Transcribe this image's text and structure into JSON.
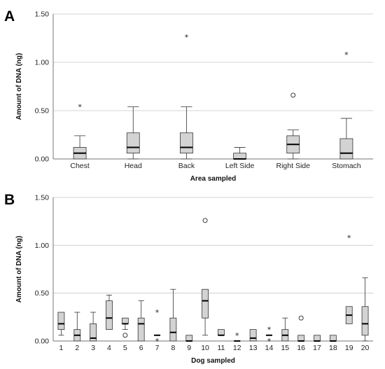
{
  "chart_data": [
    {
      "panel": "A",
      "type": "boxplot",
      "xlabel": "Area sampled",
      "ylabel": "Amount of DNA (ng)",
      "ylim": [
        0,
        1.5
      ],
      "yticks": [
        "0.00",
        "0.50",
        "1.00",
        "1.50"
      ],
      "grid": true,
      "categories": [
        "Chest",
        "Head",
        "Back",
        "Left Side",
        "Right Side",
        "Stomach"
      ],
      "boxes": [
        {
          "min": 0.0,
          "q1": 0.0,
          "median": 0.06,
          "q3": 0.12,
          "max": 0.24,
          "outliers": [
            {
              "value": 0.54,
              "kind": "extreme"
            }
          ]
        },
        {
          "min": 0.0,
          "q1": 0.06,
          "median": 0.12,
          "q3": 0.27,
          "max": 0.54,
          "outliers": []
        },
        {
          "min": 0.0,
          "q1": 0.06,
          "median": 0.12,
          "q3": 0.27,
          "max": 0.54,
          "outliers": [
            {
              "value": 1.26,
              "kind": "extreme"
            }
          ]
        },
        {
          "min": 0.0,
          "q1": 0.0,
          "median": 0.0,
          "q3": 0.06,
          "max": 0.12,
          "outliers": []
        },
        {
          "min": 0.0,
          "q1": 0.06,
          "median": 0.15,
          "q3": 0.24,
          "max": 0.3,
          "outliers": [
            {
              "value": 0.66,
              "kind": "outlier"
            }
          ]
        },
        {
          "min": 0.0,
          "q1": 0.0,
          "median": 0.06,
          "q3": 0.21,
          "max": 0.42,
          "outliers": [
            {
              "value": 1.08,
              "kind": "extreme"
            }
          ]
        }
      ]
    },
    {
      "panel": "B",
      "type": "boxplot",
      "xlabel": "Dog sampled",
      "ylabel": "Amount of DNA (ng)",
      "ylim": [
        0,
        1.5
      ],
      "yticks": [
        "0.00",
        "0.50",
        "1.00",
        "1.50"
      ],
      "grid": true,
      "categories": [
        "1",
        "2",
        "3",
        "4",
        "5",
        "6",
        "7",
        "8",
        "9",
        "10",
        "11",
        "12",
        "13",
        "14",
        "15",
        "16",
        "17",
        "18",
        "19",
        "20"
      ],
      "boxes": [
        {
          "min": 0.06,
          "q1": 0.12,
          "median": 0.18,
          "q3": 0.3,
          "max": 0.3,
          "outliers": []
        },
        {
          "min": 0.0,
          "q1": 0.0,
          "median": 0.06,
          "q3": 0.12,
          "max": 0.3,
          "outliers": []
        },
        {
          "min": 0.0,
          "q1": 0.0,
          "median": 0.03,
          "q3": 0.18,
          "max": 0.3,
          "outliers": []
        },
        {
          "min": 0.12,
          "q1": 0.12,
          "median": 0.24,
          "q3": 0.42,
          "max": 0.48,
          "outliers": []
        },
        {
          "min": 0.12,
          "q1": 0.18,
          "median": 0.18,
          "q3": 0.24,
          "max": 0.24,
          "outliers": [
            {
              "value": 0.06,
              "kind": "outlier"
            }
          ]
        },
        {
          "min": 0.0,
          "q1": 0.0,
          "median": 0.18,
          "q3": 0.24,
          "max": 0.42,
          "outliers": []
        },
        {
          "min": 0.06,
          "q1": 0.06,
          "median": 0.06,
          "q3": 0.06,
          "max": 0.06,
          "outliers": [
            {
              "value": 0.0,
              "kind": "extreme"
            },
            {
              "value": 0.3,
              "kind": "extreme"
            }
          ]
        },
        {
          "min": 0.0,
          "q1": 0.0,
          "median": 0.09,
          "q3": 0.24,
          "max": 0.54,
          "outliers": []
        },
        {
          "min": 0.0,
          "q1": 0.0,
          "median": 0.0,
          "q3": 0.06,
          "max": 0.06,
          "outliers": []
        },
        {
          "min": 0.06,
          "q1": 0.24,
          "median": 0.42,
          "q3": 0.54,
          "max": 0.54,
          "outliers": [
            {
              "value": 1.26,
              "kind": "outlier"
            }
          ]
        },
        {
          "min": 0.06,
          "q1": 0.06,
          "median": 0.06,
          "q3": 0.12,
          "max": 0.12,
          "outliers": []
        },
        {
          "min": 0.0,
          "q1": 0.0,
          "median": 0.0,
          "q3": 0.0,
          "max": 0.0,
          "outliers": [
            {
              "value": 0.06,
              "kind": "extreme"
            }
          ]
        },
        {
          "min": 0.0,
          "q1": 0.0,
          "median": 0.03,
          "q3": 0.12,
          "max": 0.12,
          "outliers": []
        },
        {
          "min": 0.06,
          "q1": 0.06,
          "median": 0.06,
          "q3": 0.06,
          "max": 0.06,
          "outliers": [
            {
              "value": 0.0,
              "kind": "extreme"
            },
            {
              "value": 0.12,
              "kind": "extreme"
            }
          ]
        },
        {
          "min": 0.0,
          "q1": 0.0,
          "median": 0.06,
          "q3": 0.12,
          "max": 0.24,
          "outliers": []
        },
        {
          "min": 0.0,
          "q1": 0.0,
          "median": 0.0,
          "q3": 0.06,
          "max": 0.06,
          "outliers": [
            {
              "value": 0.24,
              "kind": "outlier"
            }
          ]
        },
        {
          "min": 0.0,
          "q1": 0.0,
          "median": 0.0,
          "q3": 0.06,
          "max": 0.06,
          "outliers": []
        },
        {
          "min": 0.0,
          "q1": 0.0,
          "median": 0.0,
          "q3": 0.06,
          "max": 0.06,
          "outliers": []
        },
        {
          "min": 0.18,
          "q1": 0.18,
          "median": 0.27,
          "q3": 0.36,
          "max": 0.36,
          "outliers": [
            {
              "value": 1.08,
              "kind": "extreme"
            }
          ]
        },
        {
          "min": 0.0,
          "q1": 0.06,
          "median": 0.18,
          "q3": 0.36,
          "max": 0.66,
          "outliers": []
        }
      ]
    }
  ],
  "style": {
    "box_fill": "#d3d3d3",
    "grid_color": "#c8c8c8",
    "outlier_symbol": "○",
    "extreme_symbol": "*"
  }
}
